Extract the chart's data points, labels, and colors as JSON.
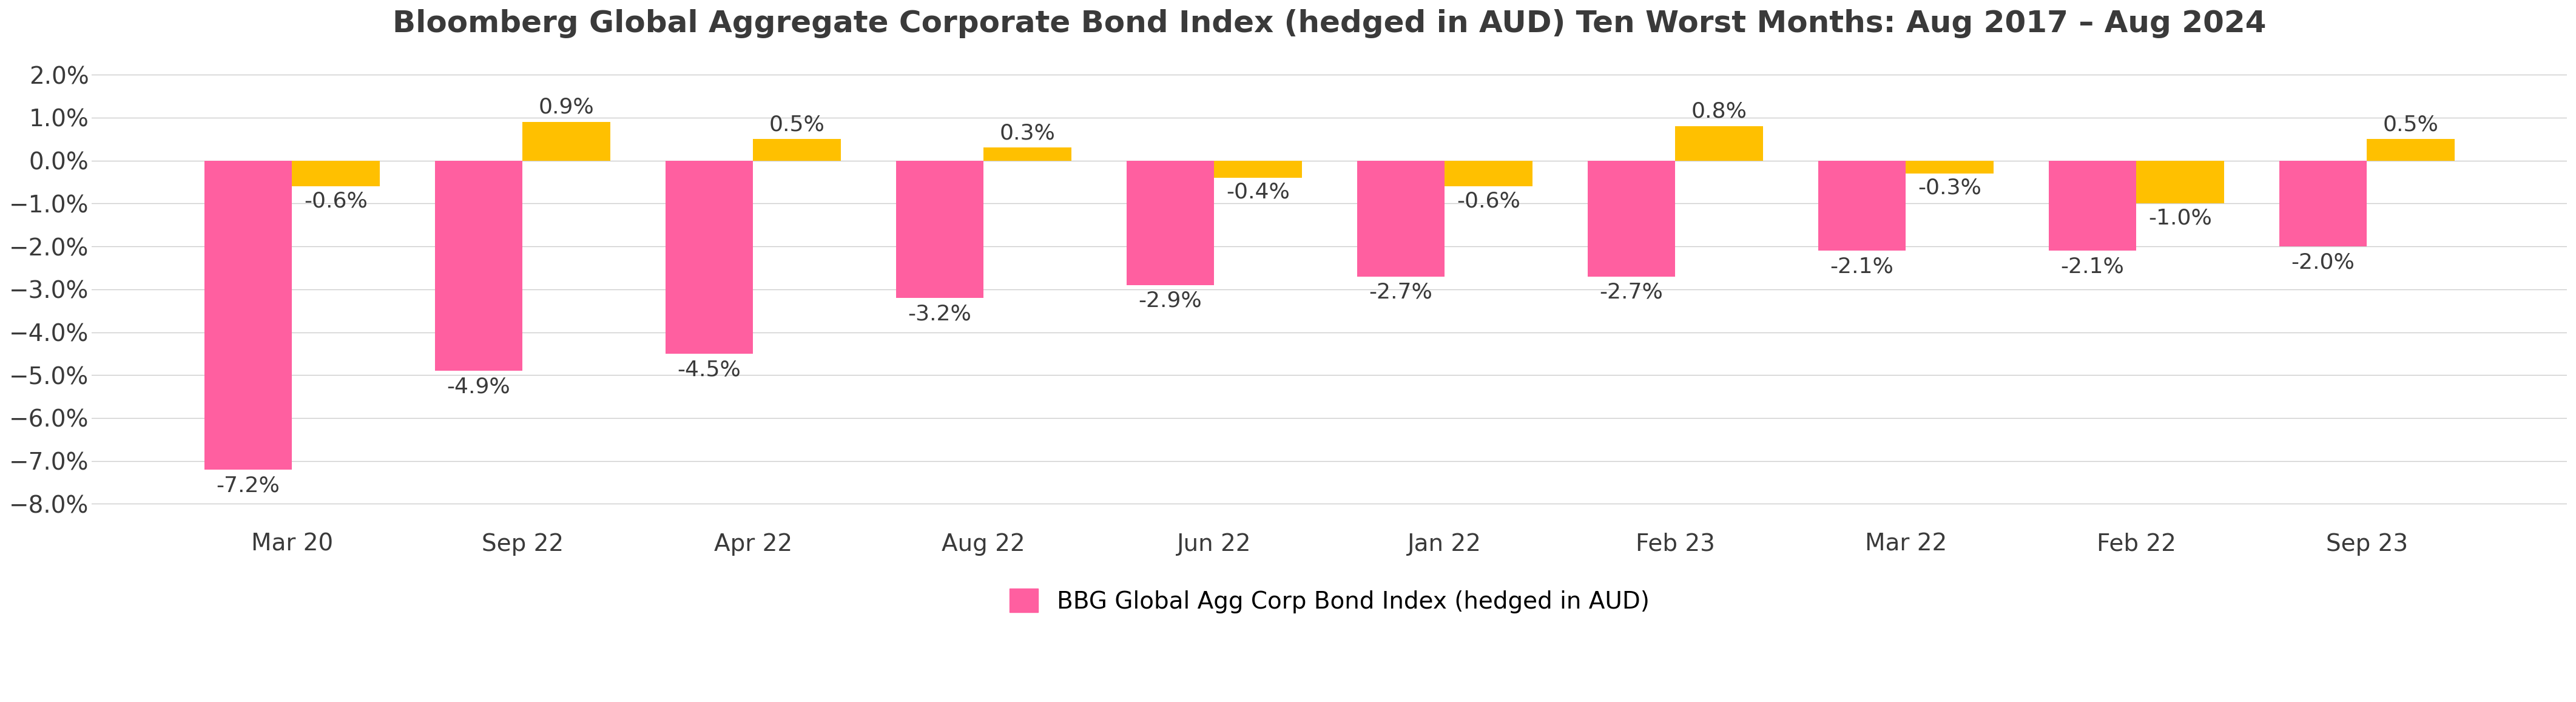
{
  "title": "Bloomberg Global Aggregate Corporate Bond Index (hedged in AUD) Ten Worst Months: Aug 2017 – Aug 2024",
  "categories": [
    "Mar 20",
    "Sep 22",
    "Apr 22",
    "Aug 22",
    "Jun 22",
    "Jan 22",
    "Feb 23",
    "Mar 22",
    "Feb 22",
    "Sep 23"
  ],
  "bbg_values": [
    -7.2,
    -4.9,
    -4.5,
    -3.2,
    -2.9,
    -2.7,
    -2.7,
    -2.1,
    -2.1,
    -2.0
  ],
  "fund_values": [
    -0.6,
    0.9,
    0.5,
    0.3,
    -0.4,
    -0.6,
    0.8,
    -0.3,
    -1.0,
    0.5
  ],
  "bbg_color": "#FF5FA0",
  "fund_color": "#FFC000",
  "background_color": "#FFFFFF",
  "grid_color": "#CCCCCC",
  "text_color": "#3A3A3A",
  "ylim": [
    -8.6,
    2.5
  ],
  "yticks": [
    -8.0,
    -7.0,
    -6.0,
    -5.0,
    -4.0,
    -3.0,
    -2.0,
    -1.0,
    0.0,
    1.0,
    2.0
  ],
  "bar_width": 0.38,
  "legend_label_bbg": "BBG Global Agg Corp Bond Index (hedged in AUD)",
  "title_fontsize": 36,
  "tick_fontsize": 28,
  "legend_fontsize": 28,
  "annotation_fontsize": 26
}
